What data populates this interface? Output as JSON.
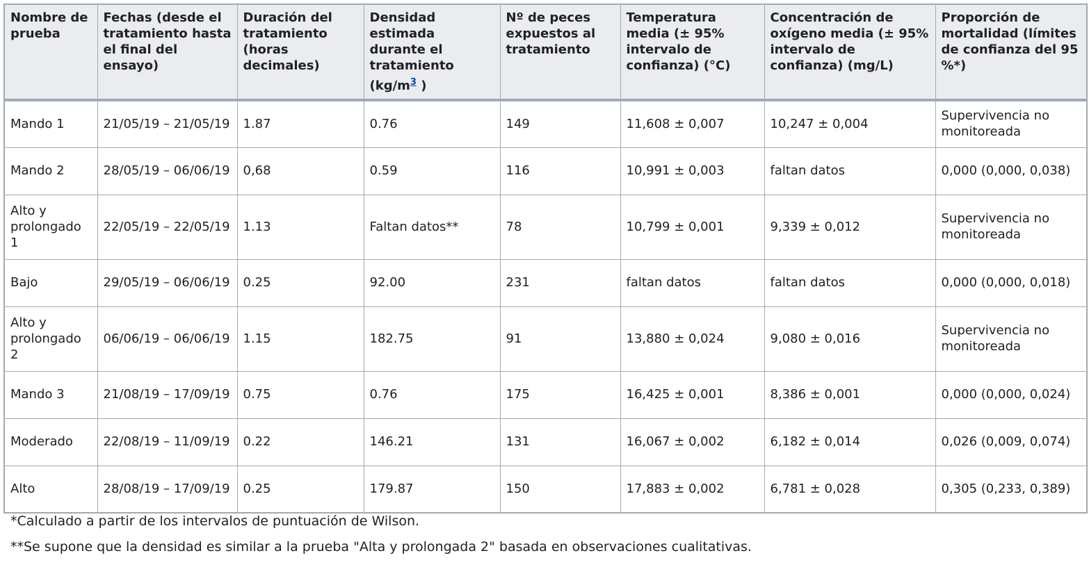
{
  "headers": [
    "Nombre de prueba",
    "Fechas (desde el tratamiento hasta el final del ensayo)",
    "Duración del tratamiento (horas decimales)",
    "Densidad estimada durante el tratamiento (kg/m",
    "Nº de peces expuestos al tratamiento",
    "Temperatura media (± 95% intervalo de confianza) (°C)",
    "Concentración de oxígeno media (± 95% intervalo de confianza) (mg/L)",
    "Proporción de mortalidad (límites de confianza del 95 %*)"
  ],
  "density_sup_link": "3",
  "density_header_suffix": " )",
  "rows": [
    [
      "Mando 1",
      "21/05/19 – 21/05/19",
      "1.87",
      "0.76",
      "149",
      "11,608 ± 0,007",
      "10,247 ± 0,004",
      "Supervivencia no monitoreada"
    ],
    [
      "Mando 2",
      "28/05/19 – 06/06/19",
      "0,68",
      "0.59",
      "116",
      "10,991 ± 0,003",
      "faltan datos",
      "0,000 (0,000, 0,038)"
    ],
    [
      "Alto y prolongado 1",
      "22/05/19 – 22/05/19",
      "1.13",
      "Faltan datos**",
      "78",
      "10,799 ± 0,001",
      "9,339 ± 0,012",
      "Supervivencia no monitoreada"
    ],
    [
      "Bajo",
      "29/05/19 – 06/06/19",
      "0.25",
      "92.00",
      "231",
      "faltan datos",
      "faltan datos",
      "0,000 (0,000, 0,018)"
    ],
    [
      "Alto y prolongado 2",
      "06/06/19 – 06/06/19",
      "1.15",
      "182.75",
      "91",
      "13,880 ± 0,024",
      "9,080 ± 0,016",
      "Supervivencia no monitoreada"
    ],
    [
      "Mando 3",
      "21/08/19 – 17/09/19",
      "0.75",
      "0.76",
      "175",
      "16,425 ± 0,001",
      "8,386 ± 0,001",
      "0,000 (0,000, 0,024)"
    ],
    [
      "Moderado",
      "22/08/19 – 11/09/19",
      "0.22",
      "146.21",
      "131",
      "16,067 ± 0,002",
      "6,182 ± 0,014",
      "0,026 (0,009, 0,074)"
    ],
    [
      "Alto",
      "28/08/19 – 17/09/19",
      "0.25",
      "179.87",
      "150",
      "17,883 ± 0,002",
      "6,781 ± 0,028",
      "0,305 (0,233, 0,389)"
    ]
  ],
  "footnotes": [
    "*Calculado a partir de los intervalos de puntuación de Wilson.",
    "**Se supone que la densidad es similar a la prueba \"Alta y prolongada 2\" basada en observaciones cualitativas."
  ]
}
